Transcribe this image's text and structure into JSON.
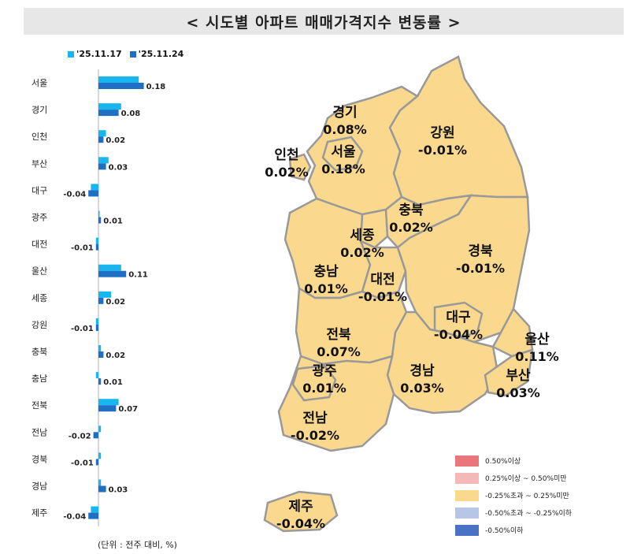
{
  "title": "< 시도별 아파트 매매가격지수 변동률 >",
  "unit_note": "(단위 : 전주 대비, %)",
  "chart_data": {
    "type": "bar",
    "orientation": "horizontal",
    "categories": [
      "서울",
      "경기",
      "인천",
      "부산",
      "대구",
      "광주",
      "대전",
      "울산",
      "세종",
      "강원",
      "충북",
      "충남",
      "전북",
      "전남",
      "경북",
      "경남",
      "제주"
    ],
    "series": [
      {
        "name": "'25.11.17",
        "color": "#17b6ef",
        "values": [
          0.16,
          0.09,
          0.03,
          0.04,
          -0.03,
          0.0,
          -0.01,
          0.09,
          0.05,
          -0.01,
          0.01,
          -0.01,
          0.08,
          0.01,
          0.01,
          0.01,
          -0.03
        ]
      },
      {
        "name": "'25.11.24",
        "color": "#1f6fc4",
        "values": [
          0.18,
          0.08,
          0.02,
          0.03,
          -0.04,
          0.01,
          -0.01,
          0.11,
          0.02,
          -0.01,
          0.02,
          0.01,
          0.07,
          -0.02,
          -0.01,
          0.03,
          -0.04
        ]
      }
    ],
    "value_labels": [
      "0.18",
      "0.08",
      "0.02",
      "0.03",
      "-0.04",
      "0.01",
      "-0.01",
      "0.11",
      "0.02",
      "-0.01",
      "0.02",
      "0.01",
      "0.07",
      "-0.02",
      "-0.01",
      "0.03",
      "-0.04"
    ]
  },
  "map": {
    "regions": [
      {
        "name": "경기",
        "value": "0.08%"
      },
      {
        "name": "강원",
        "value": "-0.01%"
      },
      {
        "name": "인천",
        "value": "0.02%"
      },
      {
        "name": "서울",
        "value": "0.18%"
      },
      {
        "name": "충북",
        "value": "0.02%"
      },
      {
        "name": "세종",
        "value": "0.02%"
      },
      {
        "name": "경북",
        "value": "-0.01%"
      },
      {
        "name": "충남",
        "value": "0.01%"
      },
      {
        "name": "대전",
        "value": "-0.01%"
      },
      {
        "name": "대구",
        "value": "-0.04%"
      },
      {
        "name": "울산",
        "value": "0.11%"
      },
      {
        "name": "전북",
        "value": "0.07%"
      },
      {
        "name": "경남",
        "value": "0.03%"
      },
      {
        "name": "부산",
        "value": "0.03%"
      },
      {
        "name": "광주",
        "value": "0.01%"
      },
      {
        "name": "전남",
        "value": "-0.02%"
      },
      {
        "name": "제주",
        "value": "-0.04%"
      }
    ],
    "fill_color": "#fad98f",
    "border_color": "#999999",
    "legend": [
      {
        "label": "0.50%이상",
        "color": "#e8767a"
      },
      {
        "label": "0.25%이상 ~ 0.50%미만",
        "color": "#f5b8b8"
      },
      {
        "label": "-0.25%초과 ~ 0.25%미만",
        "color": "#fad98f"
      },
      {
        "label": "-0.50%초과 ~ -0.25%이하",
        "color": "#b7c6e6"
      },
      {
        "label": "-0.50%이하",
        "color": "#4a72c4"
      }
    ]
  }
}
